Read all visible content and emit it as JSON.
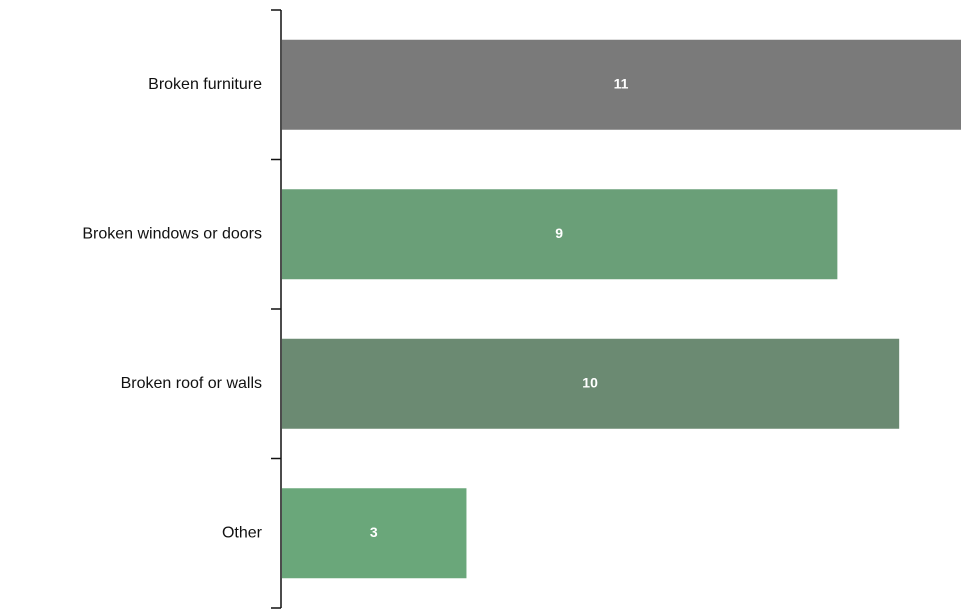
{
  "chart_data": {
    "type": "bar",
    "orientation": "horizontal",
    "categories": [
      "Broken furniture",
      "Broken windows or doors",
      "Broken roof or walls",
      "Other"
    ],
    "values": [
      11,
      9,
      10,
      3
    ],
    "bar_colors": [
      "#7a7a7a",
      "#6a9f78",
      "#6b8a72",
      "#6aa77a"
    ],
    "value_labels": [
      "11",
      "9",
      "10",
      "3"
    ],
    "xlim": [
      0,
      11
    ],
    "grid": false,
    "legend": false
  }
}
